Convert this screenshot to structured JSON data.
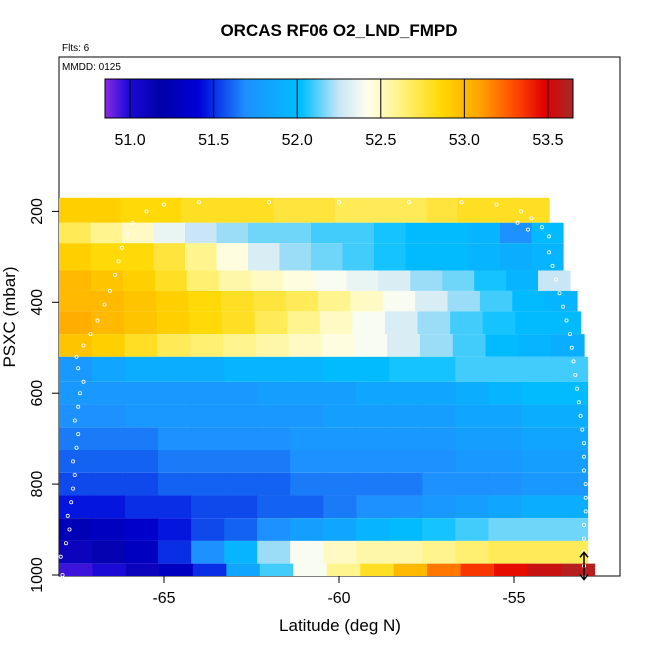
{
  "chart_data": {
    "type": "heatmap",
    "title": "ORCAS RF06 O2_LND_FMPD",
    "note_flights": "Flts: 6",
    "note_date": "MMDD: 0125",
    "xlabel": "Latitude (deg N)",
    "ylabel": "PSXC (mbar)",
    "xlim": [
      -68.0,
      -52.9
    ],
    "ylim": [
      1020,
      140
    ],
    "y_reversed": true,
    "x_ticks": [
      -65,
      -60,
      -55
    ],
    "y_ticks": [
      200,
      400,
      600,
      800,
      1000
    ],
    "colorbar": {
      "range": [
        50.85,
        53.65
      ],
      "ticks": [
        "51.0",
        "51.5",
        "52.0",
        "52.5",
        "53.0",
        "53.5"
      ],
      "tick_values": [
        51.0,
        51.5,
        52.0,
        52.5,
        53.0,
        53.5
      ]
    },
    "pressure_bands": [
      {
        "p_top": 170,
        "p_bottom": 225,
        "lat_min": -68.0,
        "lat_max": -54.0,
        "values": [
          52.9,
          52.9,
          52.85,
          52.85,
          52.8,
          52.8,
          52.8,
          52.75,
          52.75,
          52.7,
          52.7,
          52.7,
          52.75,
          52.8,
          52.8,
          52.8
        ]
      },
      {
        "p_top": 225,
        "p_bottom": 270,
        "lat_min": -68.0,
        "lat_max": -53.6,
        "values": [
          52.7,
          52.6,
          52.5,
          52.35,
          52.25,
          52.2,
          52.15,
          52.15,
          52.1,
          52.1,
          52.05,
          52.0,
          52.0,
          51.95,
          51.7,
          52.0
        ]
      },
      {
        "p_top": 270,
        "p_bottom": 330,
        "lat_min": -68.0,
        "lat_max": -53.6,
        "values": [
          52.9,
          52.85,
          52.85,
          52.75,
          52.6,
          52.45,
          52.3,
          52.2,
          52.15,
          52.1,
          52.05,
          52.0,
          52.0,
          51.95,
          51.9,
          51.95
        ]
      },
      {
        "p_top": 330,
        "p_bottom": 375,
        "lat_min": -68.0,
        "lat_max": -53.4,
        "values": [
          53.0,
          52.95,
          52.9,
          52.8,
          52.65,
          52.55,
          52.5,
          52.45,
          52.4,
          52.35,
          52.3,
          52.2,
          52.15,
          52.05,
          51.95,
          52.25
        ]
      },
      {
        "p_top": 375,
        "p_bottom": 420,
        "lat_min": -68.0,
        "lat_max": -53.2,
        "values": [
          53.0,
          53.0,
          52.95,
          52.9,
          52.85,
          52.8,
          52.75,
          52.7,
          52.6,
          52.5,
          52.4,
          52.3,
          52.2,
          52.1,
          52.0,
          51.95
        ]
      },
      {
        "p_top": 420,
        "p_bottom": 470,
        "lat_min": -68.0,
        "lat_max": -53.1,
        "values": [
          53.05,
          53.0,
          52.95,
          52.9,
          52.85,
          52.8,
          52.7,
          52.6,
          52.5,
          52.4,
          52.3,
          52.2,
          52.1,
          52.05,
          52.0,
          52.0
        ]
      },
      {
        "p_top": 470,
        "p_bottom": 520,
        "lat_min": -68.0,
        "lat_max": -53.0,
        "values": [
          52.95,
          52.9,
          52.8,
          52.7,
          52.65,
          52.6,
          52.55,
          52.5,
          52.45,
          52.4,
          52.3,
          52.2,
          52.1,
          52.0,
          51.95,
          51.9
        ]
      },
      {
        "p_top": 520,
        "p_bottom": 575,
        "lat_min": -68.0,
        "lat_max": -52.9,
        "values": [
          51.75,
          51.85,
          51.9,
          51.9,
          51.9,
          51.95,
          51.95,
          51.95,
          52.0,
          52.0,
          52.05,
          52.05,
          52.1,
          52.1,
          52.1,
          52.1
        ]
      },
      {
        "p_top": 575,
        "p_bottom": 625,
        "lat_min": -68.0,
        "lat_max": -52.9,
        "values": [
          51.75,
          51.75,
          51.75,
          51.75,
          51.75,
          51.75,
          51.8,
          51.8,
          51.8,
          51.85,
          51.85,
          51.85,
          51.9,
          51.95,
          52.0,
          52.0
        ]
      },
      {
        "p_top": 625,
        "p_bottom": 675,
        "lat_min": -68.0,
        "lat_max": -52.9,
        "values": [
          51.7,
          51.7,
          51.75,
          51.75,
          51.75,
          51.75,
          51.75,
          51.75,
          51.8,
          51.8,
          51.8,
          51.8,
          51.85,
          51.85,
          51.9,
          51.9
        ]
      },
      {
        "p_top": 675,
        "p_bottom": 725,
        "lat_min": -68.0,
        "lat_max": -52.9,
        "values": [
          51.65,
          51.65,
          51.65,
          51.7,
          51.7,
          51.7,
          51.7,
          51.75,
          51.75,
          51.75,
          51.75,
          51.75,
          51.8,
          51.8,
          51.85,
          51.85
        ]
      },
      {
        "p_top": 725,
        "p_bottom": 775,
        "lat_min": -68.0,
        "lat_max": -52.9,
        "values": [
          51.6,
          51.6,
          51.6,
          51.65,
          51.65,
          51.65,
          51.65,
          51.7,
          51.7,
          51.7,
          51.7,
          51.7,
          51.75,
          51.75,
          51.8,
          51.8
        ]
      },
      {
        "p_top": 775,
        "p_bottom": 825,
        "lat_min": -68.0,
        "lat_max": -52.9,
        "values": [
          51.55,
          51.55,
          51.55,
          51.6,
          51.6,
          51.6,
          51.6,
          51.65,
          51.65,
          51.65,
          51.65,
          51.7,
          51.7,
          51.7,
          51.75,
          51.75
        ]
      },
      {
        "p_top": 825,
        "p_bottom": 875,
        "lat_min": -68.0,
        "lat_max": -52.9,
        "values": [
          51.45,
          51.45,
          51.5,
          51.5,
          51.55,
          51.55,
          51.6,
          51.6,
          51.65,
          51.7,
          51.7,
          51.75,
          51.8,
          51.85,
          51.9,
          51.9
        ]
      },
      {
        "p_top": 875,
        "p_bottom": 925,
        "lat_min": -68.0,
        "lat_max": -52.9,
        "values": [
          51.25,
          51.3,
          51.35,
          51.45,
          51.55,
          51.6,
          51.7,
          51.8,
          51.85,
          51.95,
          52.0,
          52.05,
          52.1,
          52.15,
          52.15,
          52.15
        ]
      },
      {
        "p_top": 925,
        "p_bottom": 975,
        "lat_min": -68.0,
        "lat_max": -52.9,
        "values": [
          51.1,
          51.15,
          51.3,
          51.5,
          51.7,
          51.95,
          52.2,
          52.4,
          52.5,
          52.55,
          52.55,
          52.6,
          52.65,
          52.7,
          52.7,
          52.7
        ]
      },
      {
        "p_top": 975,
        "p_bottom": 1020,
        "lat_min": -68.0,
        "lat_max": -52.7,
        "values": [
          50.95,
          51.0,
          51.1,
          51.3,
          51.5,
          51.85,
          52.1,
          52.4,
          52.6,
          52.8,
          53.0,
          53.2,
          53.35,
          53.45,
          53.55,
          53.6
        ]
      }
    ],
    "flight_track_points": [
      [
        -67.9,
        1000
      ],
      [
        -67.95,
        960
      ],
      [
        -67.8,
        930
      ],
      [
        -67.7,
        900
      ],
      [
        -67.75,
        870
      ],
      [
        -67.65,
        840
      ],
      [
        -67.6,
        810
      ],
      [
        -67.55,
        780
      ],
      [
        -67.6,
        750
      ],
      [
        -67.5,
        720
      ],
      [
        -67.45,
        690
      ],
      [
        -67.55,
        660
      ],
      [
        -67.45,
        630
      ],
      [
        -67.4,
        600
      ],
      [
        -67.3,
        575
      ],
      [
        -67.45,
        545
      ],
      [
        -67.5,
        520
      ],
      [
        -67.3,
        495
      ],
      [
        -67.1,
        470
      ],
      [
        -66.9,
        440
      ],
      [
        -66.7,
        405
      ],
      [
        -66.55,
        375
      ],
      [
        -66.4,
        340
      ],
      [
        -66.3,
        310
      ],
      [
        -66.2,
        280
      ],
      [
        -66.05,
        250
      ],
      [
        -65.9,
        225
      ],
      [
        -65.5,
        200
      ],
      [
        -65.0,
        185
      ],
      [
        -64.0,
        180
      ],
      [
        -62.0,
        180
      ],
      [
        -60.0,
        180
      ],
      [
        -58.0,
        180
      ],
      [
        -56.5,
        180
      ],
      [
        -55.5,
        185
      ],
      [
        -54.8,
        200
      ],
      [
        -54.5,
        215
      ],
      [
        -54.2,
        235
      ],
      [
        -54.0,
        255
      ],
      [
        -54.6,
        240
      ],
      [
        -54.9,
        225
      ],
      [
        -54.0,
        290
      ],
      [
        -53.9,
        320
      ],
      [
        -53.8,
        350
      ],
      [
        -53.7,
        380
      ],
      [
        -53.6,
        410
      ],
      [
        -53.5,
        440
      ],
      [
        -53.4,
        470
      ],
      [
        -53.35,
        500
      ],
      [
        -53.3,
        530
      ],
      [
        -53.25,
        560
      ],
      [
        -53.2,
        590
      ],
      [
        -53.15,
        620
      ],
      [
        -53.1,
        650
      ],
      [
        -53.05,
        680
      ],
      [
        -53.0,
        710
      ],
      [
        -53.0,
        740
      ],
      [
        -53.0,
        770
      ],
      [
        -52.95,
        800
      ],
      [
        -52.95,
        830
      ],
      [
        -52.95,
        860
      ],
      [
        -53.0,
        890
      ],
      [
        -53.0,
        920
      ],
      [
        -53.0,
        950
      ],
      [
        -53.0,
        980
      ],
      [
        -53.0,
        1005
      ]
    ],
    "marker_arrow": {
      "lat": -53.0,
      "p_from": 950,
      "p_to": 1010
    }
  }
}
